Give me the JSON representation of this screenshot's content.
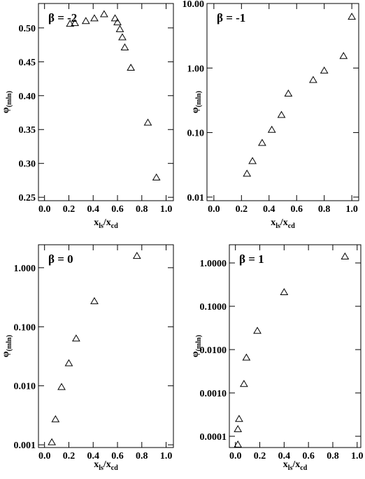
{
  "chart_data": [
    {
      "type": "scatter",
      "annotation": "β = -2",
      "log_y": false,
      "xlabel": [
        "x",
        "ls",
        "/x",
        "cd"
      ],
      "ylabel": [
        "φ",
        "(mln)"
      ],
      "x": [
        0.21,
        0.25,
        0.34,
        0.41,
        0.49,
        0.58,
        0.6,
        0.62,
        0.64,
        0.66,
        0.71,
        0.85,
        0.92
      ],
      "y": [
        0.506,
        0.507,
        0.51,
        0.514,
        0.52,
        0.514,
        0.508,
        0.498,
        0.486,
        0.471,
        0.441,
        0.36,
        0.279
      ],
      "xlim": [
        -0.05,
        1.06
      ],
      "ylim": [
        0.245,
        0.536
      ],
      "xticks": [
        {
          "value": 0,
          "label": "0.0"
        },
        0.2,
        0.4,
        0.6,
        0.8,
        {
          "value": 1,
          "label": "1.0"
        }
      ],
      "yticks": [
        0.25,
        {
          "value": 0.3,
          "label": "0.30"
        },
        0.35,
        {
          "value": 0.4,
          "label": "0.40"
        },
        0.45,
        {
          "value": 0.5,
          "label": "0.50"
        }
      ]
    },
    {
      "type": "scatter",
      "annotation": "β = -1",
      "log_y": true,
      "xlabel": [
        "x",
        "ls",
        "/x",
        "cd"
      ],
      "ylabel": [
        "φ",
        "(mln)"
      ],
      "x": [
        0.24,
        0.28,
        0.35,
        0.42,
        0.49,
        0.54,
        0.72,
        0.8,
        0.94,
        1.0
      ],
      "y": [
        0.023,
        0.036,
        0.069,
        0.11,
        0.187,
        0.4,
        0.65,
        0.91,
        1.53,
        6.2
      ],
      "xlim": [
        -0.05,
        1.05
      ],
      "ylim": [
        0.0088,
        10
      ],
      "xticks": [
        {
          "value": 0,
          "label": "0.0"
        },
        0.2,
        0.4,
        0.6,
        0.8,
        {
          "value": 1,
          "label": "1.0"
        }
      ],
      "yticks": [
        0.01,
        {
          "value": 0.1,
          "label": "0.10"
        },
        {
          "value": 1,
          "label": "1.00"
        },
        {
          "value": 10,
          "label": "10.00"
        }
      ]
    },
    {
      "type": "scatter",
      "annotation": "β = 0",
      "log_y": true,
      "xlabel": [
        "x",
        "ls",
        "/x",
        "cd"
      ],
      "ylabel": [
        "φ",
        "(mln)"
      ],
      "x": [
        0.06,
        0.09,
        0.14,
        0.2,
        0.26,
        0.41,
        0.76
      ],
      "y": [
        0.0011,
        0.0027,
        0.0095,
        0.024,
        0.063,
        0.27,
        1.58
      ],
      "xlim": [
        -0.05,
        1.06
      ],
      "ylim": [
        0.0009,
        2.45
      ],
      "xticks": [
        {
          "value": 0,
          "label": "0.0"
        },
        0.2,
        0.4,
        0.6,
        0.8,
        {
          "value": 1,
          "label": "1.0"
        }
      ],
      "yticks": [
        0.001,
        {
          "value": 0.01,
          "label": "0.010"
        },
        {
          "value": 0.1,
          "label": "0.100"
        },
        {
          "value": 1,
          "label": "1.000"
        }
      ]
    },
    {
      "type": "scatter",
      "annotation": "β = 1",
      "log_y": true,
      "xlabel": [
        "x",
        "ls",
        "/x",
        "cd"
      ],
      "ylabel": [
        "φ",
        "(mln)"
      ],
      "x": [
        0.02,
        0.02,
        0.03,
        0.07,
        0.09,
        0.18,
        0.4,
        0.9
      ],
      "y": [
        6.4e-05,
        0.000145,
        0.00025,
        0.0016,
        0.0065,
        0.027,
        0.21,
        1.4
      ],
      "xlim": [
        -0.05,
        1.03
      ],
      "ylim": [
        5.5e-05,
        2.63
      ],
      "xticks": [
        {
          "value": 0,
          "label": "0.0"
        },
        0.2,
        0.4,
        0.6,
        0.8,
        {
          "value": 1,
          "label": "1.0"
        }
      ],
      "yticks": [
        0.0001,
        {
          "value": 0.001,
          "label": "0.0010"
        },
        {
          "value": 0.01,
          "label": "0.0100"
        },
        {
          "value": 0.1,
          "label": "0.1000"
        },
        {
          "value": 1,
          "label": "1.0000"
        }
      ]
    }
  ]
}
